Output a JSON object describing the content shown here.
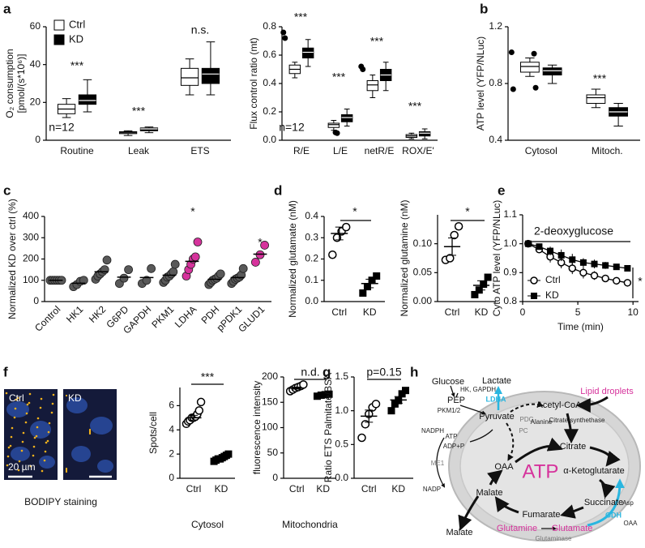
{
  "panel_labels": [
    "a",
    "b",
    "c",
    "d",
    "e",
    "f",
    "g",
    "h"
  ],
  "chart_data": [
    {
      "type": "box",
      "ylabel": [
        "O₂ consumption",
        "[pmol/(s*10⁶)]"
      ],
      "categories": [
        "Routine",
        "Leak",
        "ETS"
      ],
      "series": [
        {
          "name": "Ctrl",
          "color": "#ffffff",
          "values": [
            [
              12,
              14,
              16.5,
              19,
              22
            ],
            [
              2.5,
              3.5,
              4,
              4.5,
              5
            ],
            [
              24,
              29,
              33,
              38,
              43
            ]
          ]
        },
        {
          "name": "KD",
          "color": "#000000",
          "values": [
            [
              15,
              19,
              21,
              24,
              32
            ],
            [
              4,
              5,
              6,
              6.5,
              7
            ],
            [
              24,
              30,
              35,
              38,
              52
            ]
          ]
        }
      ],
      "ylim": [
        0,
        60
      ],
      "yticks": [
        0,
        20,
        40,
        60
      ],
      "legend": "upper left",
      "annotations": [
        "***",
        "***",
        "n.s.",
        "n=12"
      ]
    },
    {
      "type": "box",
      "ylabel": [
        "Flux control ratio (mt)"
      ],
      "categories": [
        "R/E",
        "L/E",
        "netR/E",
        "ROX/E'"
      ],
      "series": [
        {
          "name": "Ctrl",
          "color": "#ffffff",
          "values": [
            [
              0.44,
              0.47,
              0.5,
              0.53,
              0.55
            ],
            [
              0.07,
              0.09,
              0.11,
              0.12,
              0.14
            ],
            [
              0.3,
              0.35,
              0.39,
              0.42,
              0.46
            ],
            [
              0.01,
              0.02,
              0.03,
              0.04,
              0.05
            ]
          ],
          "outliers": [
            [
              0.72,
              0.76
            ],
            [],
            [
              0.5,
              0.52
            ],
            []
          ]
        },
        {
          "name": "KD",
          "color": "#000000",
          "values": [
            [
              0.52,
              0.58,
              0.62,
              0.65,
              0.71
            ],
            [
              0.1,
              0.13,
              0.16,
              0.18,
              0.22
            ],
            [
              0.35,
              0.42,
              0.46,
              0.5,
              0.55
            ],
            [
              0.01,
              0.03,
              0.05,
              0.06,
              0.08
            ]
          ],
          "outliers": [
            [],
            [
              0.05,
              0.055
            ],
            [],
            []
          ]
        }
      ],
      "ylim": [
        0,
        0.8
      ],
      "yticks": [
        {
          "value": 0,
          "label": "0.0"
        },
        0.2,
        0.4,
        0.6,
        0.8
      ],
      "annotations": [
        "***",
        "***",
        "***",
        "***",
        "n=12"
      ]
    },
    {
      "type": "box",
      "ylabel": [
        "ATP level (YFP/NLuc)"
      ],
      "categories": [
        "Cytosol",
        "Mitoch."
      ],
      "series": [
        {
          "name": "Ctrl",
          "color": "#ffffff",
          "values": [
            [
              0.85,
              0.88,
              0.92,
              0.95,
              0.98
            ],
            [
              0.63,
              0.66,
              0.7,
              0.72,
              0.76
            ]
          ],
          "outliers": [
            [
              0.76,
              1.02
            ],
            []
          ]
        },
        {
          "name": "KD",
          "color": "#000000",
          "values": [
            [
              0.8,
              0.86,
              0.89,
              0.91,
              0.93
            ],
            [
              0.5,
              0.57,
              0.6,
              0.63,
              0.66
            ]
          ],
          "outliers": [
            [
              0.77,
              1.01
            ],
            []
          ]
        }
      ],
      "ylim": [
        0.4,
        1.2
      ],
      "yticks": [
        0.4,
        0.8,
        1.2
      ],
      "annotations": [
        "***"
      ]
    },
    {
      "type": "dot",
      "ylabel": [
        "Normalized KD over ctrl (%)"
      ],
      "categories": [
        "Control",
        "HK1",
        "HK2",
        "G6PD",
        "GAPDH",
        "PKM1",
        "LDHA",
        "PDH",
        "pPDK1",
        "GLUD1"
      ],
      "points": [
        [
          100,
          100,
          100,
          100,
          100,
          100
        ],
        [
          70,
          80,
          95,
          100
        ],
        [
          105,
          120,
          130,
          140,
          150,
          195
        ],
        [
          85,
          110,
          150
        ],
        [
          85,
          100,
          155
        ],
        [
          90,
          100,
          115,
          120,
          130,
          140,
          175
        ],
        [
          120,
          150,
          175,
          200,
          210,
          280
        ],
        [
          80,
          90,
          100,
          105,
          110,
          120,
          130
        ],
        [
          85,
          95,
          105,
          110,
          115,
          125,
          155
        ],
        [
          185,
          220,
          265
        ]
      ],
      "means": [
        100,
        86,
        140,
        115,
        113,
        124,
        189,
        105,
        113,
        223
      ],
      "colors": [
        "#595959",
        "#595959",
        "#595959",
        "#595959",
        "#595959",
        "#595959",
        "#d6339c",
        "#595959",
        "#595959",
        "#d6339c"
      ],
      "ylim": [
        0,
        400
      ],
      "yticks": [
        0,
        100,
        200,
        300,
        400
      ],
      "annotations": [
        "*",
        "*"
      ]
    },
    {
      "type": "dot",
      "ylabel": [
        "Normalized glutamate (nM)"
      ],
      "categories": [
        "Ctrl",
        "KD"
      ],
      "points": [
        [
          0.22,
          0.3,
          0.33,
          0.35
        ],
        [
          0.04,
          0.07,
          0.1,
          0.12
        ]
      ],
      "means": [
        0.32,
        0.085
      ],
      "errors": [
        0.03,
        0.02
      ],
      "colors": [
        "#000000",
        "#000000"
      ],
      "markers": [
        "open-circle",
        "filled-square"
      ],
      "ylim": [
        0,
        0.4
      ],
      "yticks": [
        {
          "value": 0,
          "label": "0.0"
        },
        0.1,
        0.2,
        0.3,
        0.4
      ],
      "annotations": [
        "*"
      ]
    },
    {
      "type": "dot",
      "ylabel": [
        "Normalized glutamine (nM)"
      ],
      "categories": [
        "Ctrl",
        "KD"
      ],
      "points": [
        [
          0.072,
          0.075,
          0.115,
          0.13
        ],
        [
          0.012,
          0.02,
          0.03,
          0.042
        ]
      ],
      "means": [
        0.095,
        0.028
      ],
      "errors": [
        0.015,
        0.008
      ],
      "colors": [
        "#000000",
        "#000000"
      ],
      "markers": [
        "open-circle",
        "filled-square"
      ],
      "ylim": [
        0,
        0.15
      ],
      "yticks": [
        {
          "value": 0,
          "label": "0.00"
        },
        {
          "value": 0.05,
          "label": "0.05"
        },
        {
          "value": 0.1,
          "label": "0.10"
        }
      ],
      "annotations": [
        "*"
      ]
    },
    {
      "type": "line",
      "ylabel": [
        "Cyto ATP level (YFP/NLuc)"
      ],
      "xlabel": "Time (min)",
      "x": [
        0.5,
        1.5,
        2.5,
        3.5,
        4.5,
        5.5,
        6.5,
        7.5,
        8.5,
        9.5
      ],
      "series": [
        {
          "name": "Ctrl",
          "color": "#000000",
          "marker": "open-circle",
          "values": [
            1.0,
            0.98,
            0.955,
            0.935,
            0.915,
            0.9,
            0.89,
            0.88,
            0.872,
            0.865
          ],
          "errors": [
            0,
            0.01,
            0.02,
            0.02,
            0.02,
            0.02,
            0.015,
            0.012,
            0.01,
            0.01
          ]
        },
        {
          "name": "KD",
          "color": "#000000",
          "marker": "filled-square",
          "values": [
            1.0,
            0.99,
            0.975,
            0.96,
            0.945,
            0.935,
            0.93,
            0.925,
            0.92,
            0.915
          ],
          "errors": [
            0,
            0.01,
            0.015,
            0.02,
            0.02,
            0.015,
            0.015,
            0.012,
            0.01,
            0.01
          ]
        }
      ],
      "xlim": [
        0,
        10.5
      ],
      "xticks": [
        0,
        5,
        10
      ],
      "ylim": [
        0.8,
        1.1
      ],
      "yticks": [
        0.8,
        0.9,
        {
          "value": 1,
          "label": "1.0"
        },
        1.1
      ],
      "legend": "lower left",
      "annotations": [
        "2-deoxyglucose",
        "*"
      ]
    },
    {
      "type": "dot",
      "ylabel": [
        "Spots/cell"
      ],
      "xlabel": "Cytosol",
      "categories": [
        "Ctrl",
        "KD"
      ],
      "points": [
        [
          4.5,
          4.7,
          4.8,
          5,
          5,
          5.1,
          5.3,
          5.6,
          6.3
        ],
        [
          1.4,
          1.5,
          1.6,
          1.6,
          1.7,
          1.8,
          1.9,
          2.0
        ]
      ],
      "means": [
        5.0,
        1.65
      ],
      "errors": [
        0.2,
        0.07
      ],
      "colors": [
        "#000000",
        "#000000"
      ],
      "markers": [
        "open-circle",
        "filled-square"
      ],
      "ylim": [
        0,
        7.5
      ],
      "yticks": [
        0,
        2,
        4,
        6
      ],
      "annotations": [
        "***"
      ]
    },
    {
      "type": "dot",
      "ylabel": [
        "fluorescence intensity"
      ],
      "xlabel": "Mitochondria",
      "categories": [
        "Ctrl",
        "KD"
      ],
      "points": [
        [
          172,
          175,
          178,
          180,
          182,
          185
        ],
        [
          162,
          164,
          165,
          166
        ]
      ],
      "means": [
        178,
        164
      ],
      "errors": [
        2,
        1
      ],
      "colors": [
        "#000000",
        "#000000"
      ],
      "markers": [
        "open-circle",
        "filled-square"
      ],
      "ylim": [
        0,
        200
      ],
      "yticks": [
        0,
        50,
        100,
        150,
        200
      ],
      "annotations": [
        "n.d."
      ]
    },
    {
      "type": "dot",
      "ylabel": [
        "Ratio ETS Palmitate/BSA"
      ],
      "categories": [
        "Ctrl",
        "KD"
      ],
      "points": [
        [
          0.6,
          0.8,
          0.95,
          1.05,
          1.1
        ],
        [
          1.0,
          1.1,
          1.15,
          1.25,
          1.3
        ]
      ],
      "means": [
        0.92,
        1.16
      ],
      "errors": [
        0.09,
        0.05
      ],
      "colors": [
        "#000000",
        "#000000"
      ],
      "markers": [
        "open-circle",
        "filled-square"
      ],
      "ylim": [
        0,
        1.5
      ],
      "yticks": [
        {
          "value": 0,
          "label": "0.0"
        },
        0.5,
        {
          "value": 1,
          "label": "1.0"
        },
        1.5
      ],
      "annotations": [
        "p=0.15"
      ]
    }
  ],
  "image": {
    "labels": [
      "Ctrl",
      "KD",
      "20 µm",
      "BODIPY staining"
    ]
  },
  "diagram": {
    "nodes": [
      "Glucose",
      "HK, GAPDH",
      "PEP",
      "PKM1/2",
      "LDHA",
      "Lactate",
      "Pyruvate",
      "PDC",
      "PC",
      "Alanine",
      "Acetyl-CoA",
      "Citrate synthethase",
      "ATP",
      "ADP+P",
      "NADPH",
      "ME1",
      "NADP",
      "OAA",
      "ATP",
      "Citrate",
      "α-Ketoglutarate",
      "Malate",
      "Succinate",
      "Fumarate",
      "GDH",
      "Asp",
      "OAA",
      "Malate",
      "Glutamine",
      "Glutamate",
      "Glutaminase",
      "Lipid droplets"
    ]
  }
}
